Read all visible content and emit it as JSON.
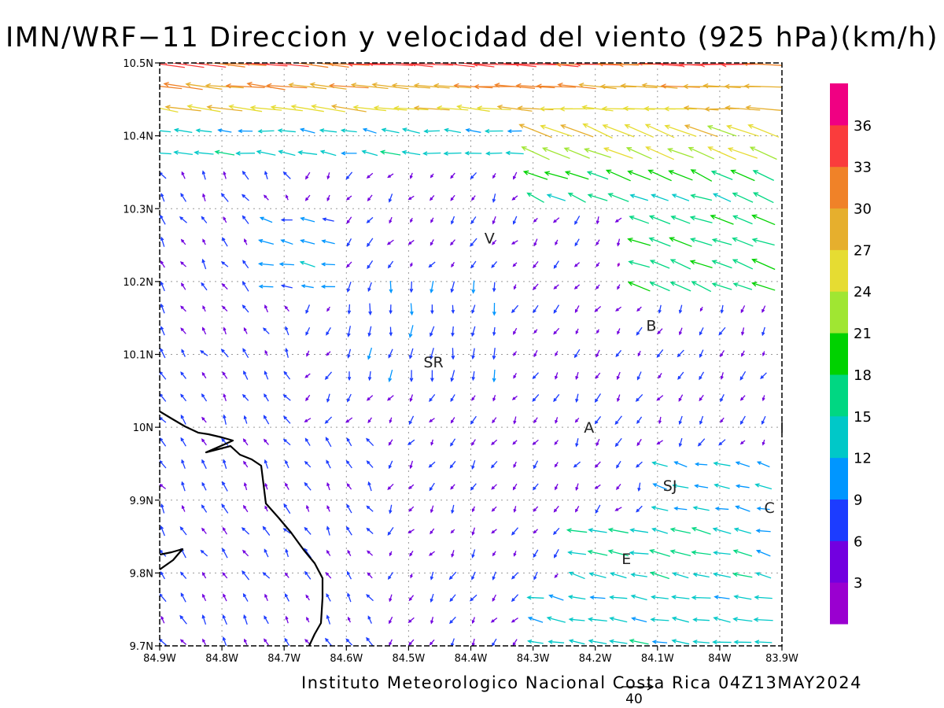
{
  "title": "IMN/WRF−11 Direccion y velocidad del viento (925 hPa)(km/h)",
  "credit": "Instituto Meteorologico Nacional Costa Rica 04Z13MAY2024",
  "reference_vector": {
    "label": "40",
    "speed": 40
  },
  "map": {
    "lon_range": [
      -84.9,
      -83.9
    ],
    "lat_range": [
      9.7,
      10.5
    ],
    "x_ticks": [
      "84.9W",
      "84.8W",
      "84.7W",
      "84.6W",
      "84.5W",
      "84.4W",
      "84.3W",
      "84.2W",
      "84.1W",
      "84W",
      "83.9W"
    ],
    "y_ticks": [
      "9.7N",
      "9.8N",
      "9.9N",
      "10N",
      "10.1N",
      "10.2N",
      "10.3N",
      "10.4N",
      "10.5N"
    ],
    "gridlines": "dotted"
  },
  "colorbar": {
    "labels": [
      "3",
      "6",
      "9",
      "12",
      "15",
      "18",
      "21",
      "24",
      "27",
      "30",
      "33",
      "36"
    ],
    "colors": [
      "#9a00d0",
      "#7200e0",
      "#1c3cff",
      "#0096ff",
      "#00c8c8",
      "#00d782",
      "#00d200",
      "#a0e632",
      "#e6dc32",
      "#e6af2d",
      "#f08228",
      "#fa3c3c",
      "#f00082"
    ]
  },
  "locations": [
    {
      "label": "V",
      "lon": -84.37,
      "lat": 10.26
    },
    {
      "label": "SR",
      "lon": -84.46,
      "lat": 10.09
    },
    {
      "label": "B",
      "lon": -84.11,
      "lat": 10.14
    },
    {
      "label": "A",
      "lon": -84.21,
      "lat": 10.0
    },
    {
      "label": "SJ",
      "lon": -84.08,
      "lat": 9.92
    },
    {
      "label": "C",
      "lon": -83.92,
      "lat": 9.89
    },
    {
      "label": "E",
      "lon": -84.15,
      "lat": 9.82
    },
    {
      "label": "I",
      "lon": -83.9,
      "lat": 10.0
    }
  ]
}
